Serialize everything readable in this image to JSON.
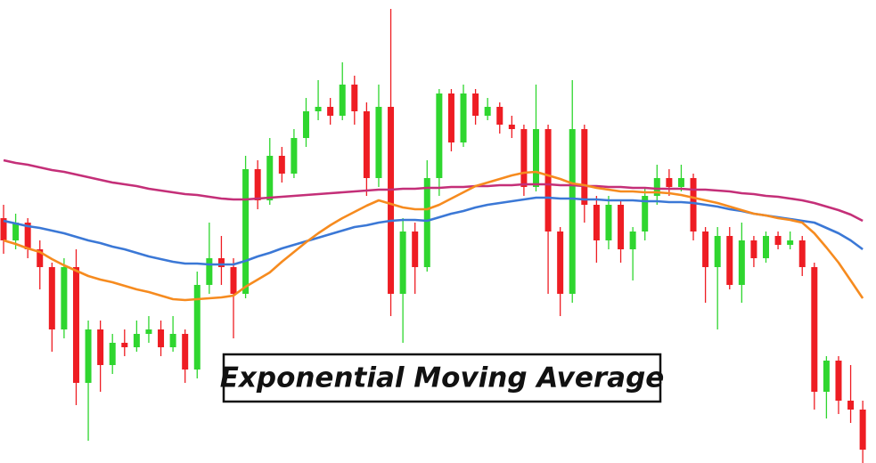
{
  "chart_data": {
    "type": "candlestick",
    "title": "Exponential Moving Average",
    "ylim": [
      0,
      520
    ],
    "up_color": "#2fd62f",
    "down_color": "#ee1d23",
    "open": [
      275,
      250,
      270,
      240,
      220,
      150,
      220,
      90,
      150,
      110,
      135,
      130,
      145,
      150,
      130,
      145,
      105,
      200,
      230,
      220,
      190,
      330,
      295,
      345,
      325,
      365,
      395,
      400,
      390,
      425,
      395,
      320,
      400,
      190,
      260,
      220,
      320,
      415,
      360,
      415,
      390,
      400,
      380,
      375,
      310,
      375,
      260,
      190,
      375,
      290,
      250,
      290,
      240,
      260,
      300,
      320,
      310,
      320,
      260,
      220,
      255,
      200,
      250,
      230,
      255,
      245,
      250,
      220,
      80,
      115,
      70,
      60
    ],
    "high": [
      290,
      280,
      275,
      250,
      225,
      230,
      240,
      160,
      160,
      145,
      150,
      160,
      165,
      160,
      165,
      150,
      215,
      270,
      255,
      230,
      345,
      340,
      365,
      355,
      375,
      410,
      430,
      410,
      450,
      435,
      405,
      425,
      510,
      275,
      270,
      340,
      420,
      420,
      425,
      420,
      410,
      405,
      390,
      380,
      425,
      380,
      265,
      430,
      380,
      300,
      300,
      295,
      265,
      310,
      335,
      330,
      335,
      325,
      265,
      265,
      265,
      270,
      255,
      260,
      260,
      260,
      255,
      225,
      120,
      120,
      110,
      70
    ],
    "low": [
      235,
      240,
      230,
      195,
      125,
      140,
      65,
      25,
      80,
      100,
      120,
      125,
      135,
      120,
      125,
      90,
      95,
      190,
      200,
      140,
      185,
      285,
      290,
      315,
      320,
      355,
      385,
      380,
      385,
      380,
      300,
      310,
      165,
      135,
      190,
      215,
      300,
      350,
      355,
      380,
      385,
      370,
      365,
      300,
      305,
      190,
      165,
      180,
      270,
      225,
      240,
      225,
      205,
      250,
      290,
      300,
      305,
      250,
      180,
      150,
      195,
      180,
      220,
      225,
      240,
      240,
      210,
      60,
      50,
      55,
      45,
      0
    ],
    "close": [
      250,
      270,
      240,
      220,
      150,
      220,
      90,
      150,
      110,
      135,
      130,
      145,
      150,
      130,
      145,
      105,
      200,
      230,
      220,
      190,
      330,
      295,
      345,
      325,
      365,
      395,
      400,
      390,
      425,
      395,
      320,
      400,
      190,
      260,
      220,
      320,
      415,
      360,
      415,
      390,
      400,
      380,
      375,
      310,
      375,
      260,
      190,
      375,
      290,
      250,
      290,
      240,
      260,
      300,
      320,
      310,
      320,
      260,
      220,
      255,
      200,
      250,
      230,
      255,
      245,
      250,
      220,
      80,
      115,
      70,
      60,
      15
    ],
    "lines": [
      {
        "color": "#c42f78",
        "values": [
          340,
          337,
          335,
          332,
          329,
          327,
          324,
          321,
          318,
          315,
          313,
          311,
          308,
          306,
          304,
          302,
          301,
          299,
          297,
          296,
          296,
          297,
          298,
          299,
          300,
          301,
          302,
          303,
          304,
          305,
          306,
          307,
          307,
          308,
          308,
          309,
          309,
          310,
          310,
          311,
          311,
          312,
          312,
          313,
          313,
          313,
          312,
          312,
          311,
          311,
          310,
          310,
          309,
          309,
          308,
          308,
          308,
          307,
          307,
          306,
          305,
          303,
          302,
          300,
          299,
          297,
          295,
          292,
          288,
          284,
          279,
          272
        ]
      },
      {
        "color": "#3b78d6",
        "values": [
          272,
          269,
          266,
          264,
          261,
          258,
          254,
          250,
          247,
          243,
          240,
          236,
          232,
          229,
          226,
          224,
          224,
          223,
          223,
          223,
          227,
          232,
          236,
          241,
          245,
          249,
          253,
          257,
          261,
          265,
          267,
          270,
          272,
          273,
          273,
          272,
          276,
          280,
          283,
          287,
          290,
          292,
          294,
          296,
          298,
          298,
          297,
          297,
          296,
          296,
          295,
          295,
          295,
          294,
          294,
          293,
          293,
          292,
          290,
          288,
          285,
          283,
          280,
          278,
          276,
          274,
          272,
          270,
          264,
          258,
          250,
          240
        ]
      },
      {
        "color": "#f68b1f",
        "values": [
          250,
          246,
          241,
          237,
          229,
          222,
          216,
          210,
          206,
          203,
          199,
          195,
          192,
          188,
          184,
          183,
          184,
          185,
          186,
          188,
          198,
          206,
          214,
          226,
          237,
          248,
          258,
          267,
          275,
          282,
          289,
          295,
          291,
          287,
          285,
          285,
          290,
          297,
          304,
          311,
          315,
          319,
          323,
          326,
          327,
          323,
          319,
          314,
          312,
          309,
          307,
          305,
          305,
          304,
          304,
          303,
          301,
          298,
          295,
          292,
          288,
          284,
          280,
          278,
          275,
          273,
          270,
          258,
          242,
          225,
          205,
          185
        ]
      }
    ]
  }
}
